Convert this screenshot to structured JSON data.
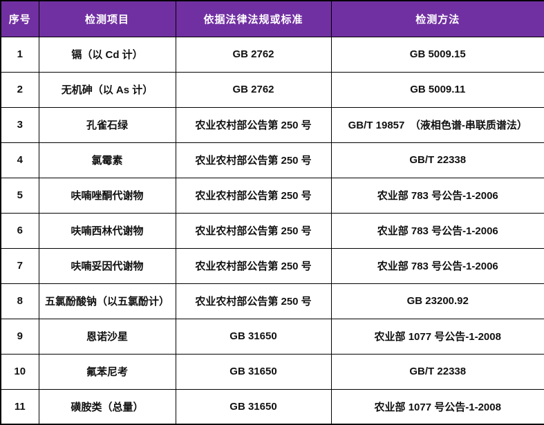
{
  "table": {
    "colors": {
      "header_bg": "#7130A2",
      "header_text": "#FFFFFF",
      "border": "#000000",
      "body_text": "#111111",
      "body_bg": "#FFFFFF"
    },
    "headers": {
      "no": "序号",
      "item": "检测项目",
      "basis": "依据法律法规或标准",
      "method": "检测方法"
    },
    "rows": [
      {
        "no": "1",
        "item": "镉（以 Cd 计）",
        "basis": "GB 2762",
        "method": "GB 5009.15"
      },
      {
        "no": "2",
        "item": "无机砷（以 As 计）",
        "basis": "GB 2762",
        "method": "GB 5009.11"
      },
      {
        "no": "3",
        "item": "孔雀石绿",
        "basis": "农业农村部公告第 250 号",
        "method": "GB/T 19857　（液相色谱-串联质谱法）"
      },
      {
        "no": "4",
        "item": "氯霉素",
        "basis": "农业农村部公告第 250 号",
        "method": "GB/T 22338"
      },
      {
        "no": "5",
        "item": "呋喃唑酮代谢物",
        "basis": "农业农村部公告第 250 号",
        "method": "农业部 783 号公告-1-2006"
      },
      {
        "no": "6",
        "item": "呋喃西林代谢物",
        "basis": "农业农村部公告第 250 号",
        "method": "农业部 783 号公告-1-2006"
      },
      {
        "no": "7",
        "item": "呋喃妥因代谢物",
        "basis": "农业农村部公告第 250 号",
        "method": "农业部 783 号公告-1-2006"
      },
      {
        "no": "8",
        "item": "五氯酚酸钠（以五氯酚计）",
        "basis": "农业农村部公告第 250 号",
        "method": "GB 23200.92"
      },
      {
        "no": "9",
        "item": "恩诺沙星",
        "basis": "GB 31650",
        "method": "农业部 1077 号公告-1-2008"
      },
      {
        "no": "10",
        "item": "氟苯尼考",
        "basis": "GB 31650",
        "method": "GB/T 22338"
      },
      {
        "no": "11",
        "item": "磺胺类（总量）",
        "basis": "GB 31650",
        "method": "农业部 1077 号公告-1-2008"
      }
    ]
  }
}
